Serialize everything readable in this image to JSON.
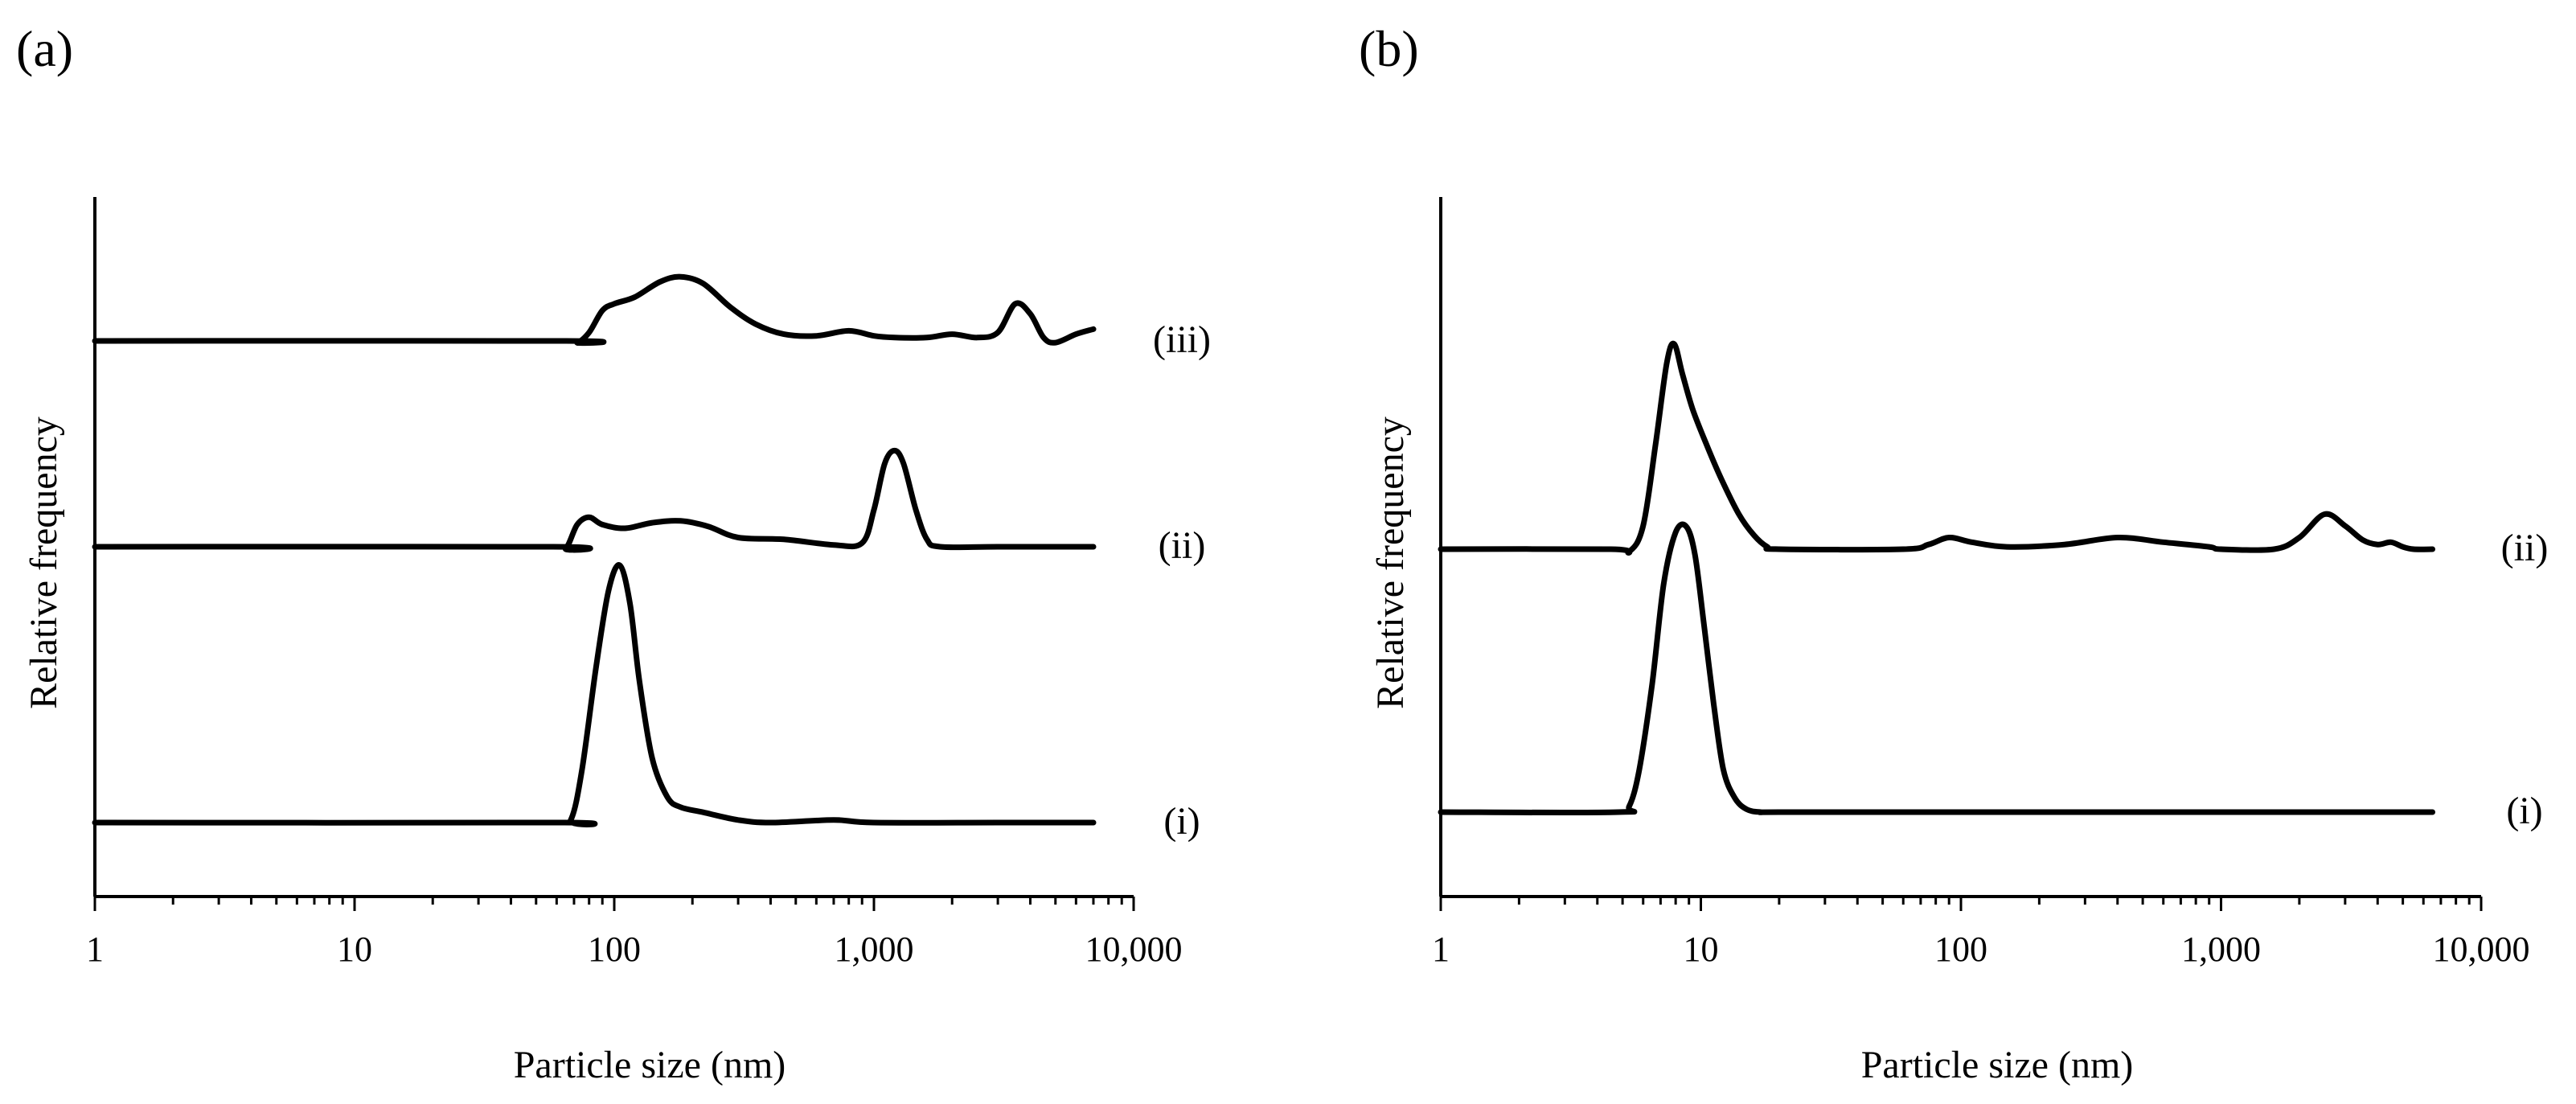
{
  "chart_data": [
    {
      "type": "line",
      "panel_label": "(a)",
      "xlabel": "Particle size (nm)",
      "ylabel": "Relative frequency",
      "xscale": "log",
      "xlim": [
        1,
        10000
      ],
      "x_tick_labels": [
        "1",
        "10",
        "100",
        "1,000",
        "10,000"
      ],
      "x_tick_values": [
        1,
        10,
        100,
        1000,
        10000
      ],
      "series": [
        {
          "name": "(i)",
          "x": [
            1,
            60,
            68,
            75,
            85,
            95,
            105,
            115,
            125,
            140,
            160,
            180,
            220,
            300,
            400,
            700,
            1000,
            3000,
            7000
          ],
          "values": [
            0,
            0,
            0.01,
            0.2,
            0.6,
            0.9,
            1.0,
            0.85,
            0.55,
            0.25,
            0.1,
            0.06,
            0.04,
            0.01,
            0,
            0.01,
            0,
            0,
            0
          ]
        },
        {
          "name": "(ii)",
          "x": [
            1,
            58,
            65,
            72,
            80,
            90,
            110,
            140,
            180,
            230,
            300,
            450,
            700,
            900,
            1000,
            1100,
            1200,
            1300,
            1450,
            1600,
            1800,
            3000,
            7000
          ],
          "values": [
            0,
            0,
            -0.01,
            0.12,
            0.16,
            0.12,
            0.1,
            0.13,
            0.14,
            0.11,
            0.05,
            0.04,
            0.01,
            0.02,
            0.2,
            0.45,
            0.52,
            0.45,
            0.2,
            0.04,
            0,
            0,
            0
          ]
        },
        {
          "name": "(iii)",
          "x": [
            1,
            65,
            72,
            80,
            90,
            100,
            120,
            150,
            180,
            220,
            280,
            350,
            450,
            600,
            800,
            1000,
            1200,
            1600,
            2000,
            2500,
            3000,
            3500,
            4000,
            4500,
            5000,
            6000,
            7000
          ],
          "values": [
            0,
            0,
            -0.01,
            0.05,
            0.18,
            0.22,
            0.26,
            0.35,
            0.38,
            0.34,
            0.2,
            0.1,
            0.04,
            0.03,
            0.06,
            0.03,
            0.02,
            0.02,
            0.04,
            0.02,
            0.05,
            0.22,
            0.16,
            0.02,
            -0.01,
            0.04,
            0.07
          ]
        }
      ]
    },
    {
      "type": "line",
      "panel_label": "(b)",
      "xlabel": "Particle size (nm)",
      "ylabel": "Relative frequency",
      "xscale": "log",
      "xlim": [
        1,
        10000
      ],
      "x_tick_labels": [
        "1",
        "10",
        "100",
        "1,000",
        "10,000"
      ],
      "x_tick_values": [
        1,
        10,
        100,
        1000,
        10000
      ],
      "series": [
        {
          "name": "(i)",
          "x": [
            1,
            4.8,
            5.3,
            5.8,
            6.5,
            7.2,
            8,
            8.8,
            9.5,
            10.3,
            11.2,
            12.2,
            13.5,
            15,
            17,
            20,
            100,
            1000,
            6500
          ],
          "values": [
            0,
            0,
            0.02,
            0.15,
            0.45,
            0.8,
            0.98,
            1.0,
            0.9,
            0.65,
            0.38,
            0.15,
            0.05,
            0.01,
            0,
            0,
            0,
            0,
            0
          ]
        },
        {
          "name": "(ii)",
          "x": [
            1,
            4.5,
            5.3,
            6,
            6.7,
            7.4,
            7.9,
            8.5,
            9.3,
            10.5,
            12,
            14,
            16,
            18,
            20,
            60,
            75,
            90,
            110,
            150,
            250,
            400,
            600,
            900,
            1000,
            1600,
            2000,
            2500,
            3000,
            3500,
            4000,
            4500,
            5000,
            5500,
            6500
          ],
          "values": [
            0,
            0,
            -0.01,
            0.1,
            0.45,
            0.8,
            0.88,
            0.75,
            0.6,
            0.45,
            0.3,
            0.15,
            0.06,
            0.01,
            0,
            0,
            0.02,
            0.05,
            0.03,
            0.01,
            0.02,
            0.05,
            0.03,
            0.01,
            0,
            0,
            0.05,
            0.15,
            0.1,
            0.04,
            0.02,
            0.03,
            0.01,
            0,
            0
          ]
        }
      ]
    }
  ]
}
